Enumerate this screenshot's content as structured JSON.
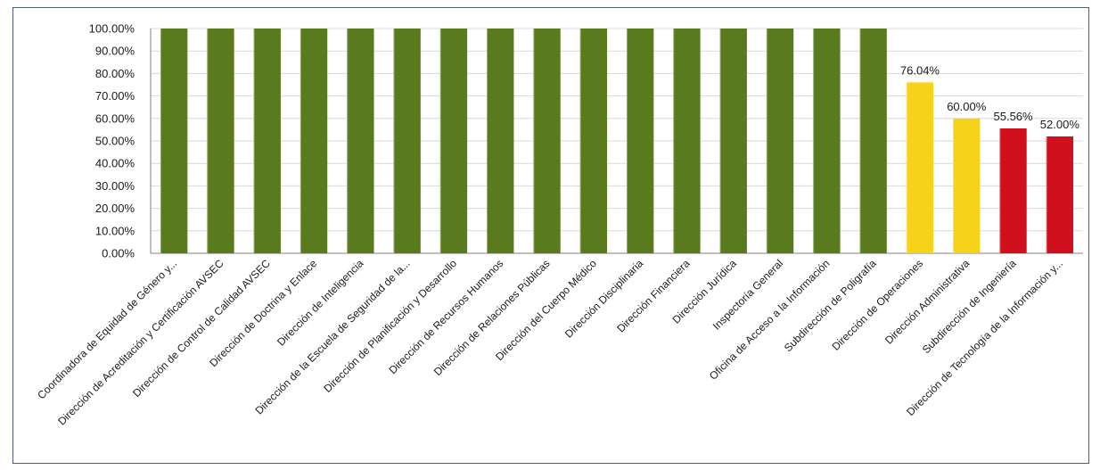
{
  "chart_data": {
    "type": "bar",
    "title": "",
    "xlabel": "",
    "ylabel": "",
    "ylim": [
      0,
      100
    ],
    "yticks": [
      "0.00%",
      "10.00%",
      "20.00%",
      "30.00%",
      "40.00%",
      "50.00%",
      "60.00%",
      "70.00%",
      "80.00%",
      "90.00%",
      "100.00%"
    ],
    "grid": true,
    "categories": [
      "Coordinadora de Equidad de Género y...",
      "Dirección de Acreditación y Certificación AVSEC",
      "Dirección de Control de Calidad AVSEC",
      "Dirección de Doctrina y Enlace",
      "Dirección de Inteligencia",
      "Dirección de la Escuela de Seguridad de la...",
      "Dirección de Planificación y Desarrollo",
      "Dirección de Recursos Humanos",
      "Dirección de Relaciones Públicas",
      "Dirección del Cuerpo Médico",
      "Dirección Disciplinaria",
      "Dirección Financiera",
      "Dirección Jurídica",
      "Inspectoría General",
      "Oficina de Acceso a la Información",
      "Subdirección de Poligrafía",
      "Dirección de Operaciones",
      "Dirección Administrativa",
      "Subdirección de Ingeniería",
      "Dirección de Tecnología de la Información y..."
    ],
    "values": [
      100,
      100,
      100,
      100,
      100,
      100,
      100,
      100,
      100,
      100,
      100,
      100,
      100,
      100,
      100,
      100,
      76.04,
      60.0,
      55.56,
      52.0
    ],
    "data_labels": [
      "",
      "",
      "",
      "",
      "",
      "",
      "",
      "",
      "",
      "",
      "",
      "",
      "",
      "",
      "",
      "",
      "76.04%",
      "60.00%",
      "55.56%",
      "52.00%"
    ],
    "bar_colors": [
      "#5a7a1e",
      "#5a7a1e",
      "#5a7a1e",
      "#5a7a1e",
      "#5a7a1e",
      "#5a7a1e",
      "#5a7a1e",
      "#5a7a1e",
      "#5a7a1e",
      "#5a7a1e",
      "#5a7a1e",
      "#5a7a1e",
      "#5a7a1e",
      "#5a7a1e",
      "#5a7a1e",
      "#5a7a1e",
      "#f7d21a",
      "#f7d21a",
      "#d0101c",
      "#d0101c"
    ]
  }
}
